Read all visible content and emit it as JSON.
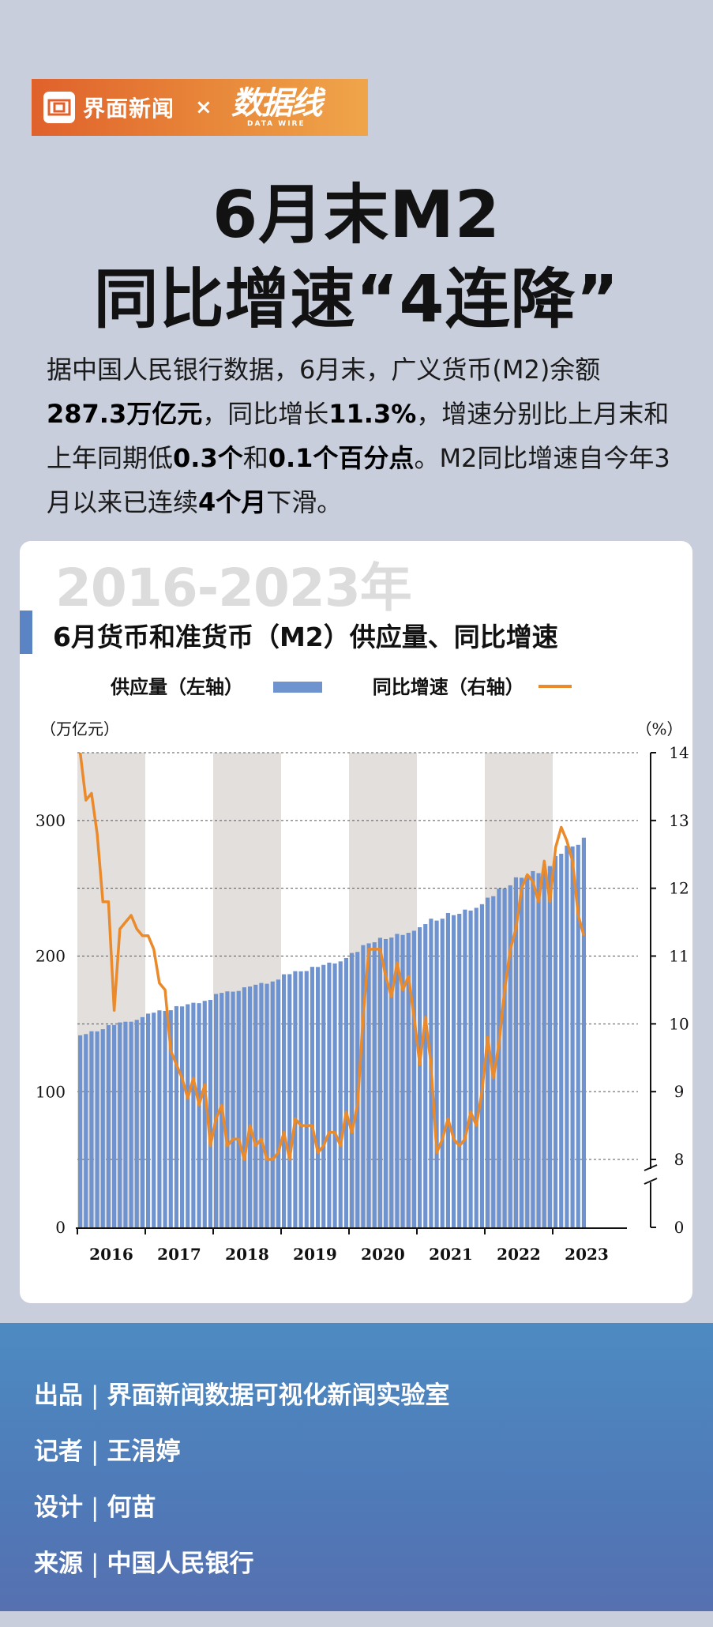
{
  "header": {
    "brand": "界面新闻",
    "times": "×",
    "partner_cn": "数据线",
    "partner_en": "DATA WIRE"
  },
  "title": {
    "line1": "6月末M2",
    "line2": "同比增速“4连降”"
  },
  "intro": {
    "p1": "据中国人民银行数据，6月末，广义货币(M2)余额",
    "b1": "287.3万亿元",
    "p2": "，同比增长",
    "b2": "11.3%",
    "p3": "，增速分别比上月末和上年同期低",
    "b3": "0.3个",
    "p4": "和",
    "b4": "0.1个百分点",
    "p5": "。M2同比增速自今年3月以来已连续",
    "b5": "4个月",
    "p6": "下滑。"
  },
  "colors": {
    "bar": "#6f93cf",
    "line": "#ea8a2a",
    "band": "#e3dfdd",
    "accent": "#e0612b",
    "footer": "#4f7ab8"
  },
  "chart_data": {
    "type": "bar+line",
    "title": "6月货币和准货币（M2）供应量、同比增速",
    "year_range": "2016-2023年",
    "legend": {
      "bars": "供应量（左轴）",
      "line": "同比增速（右轴）"
    },
    "left_axis": {
      "unit": "（万亿元）",
      "ticks": [
        0,
        100,
        200,
        300
      ],
      "range": [
        0,
        350
      ]
    },
    "right_axis": {
      "unit": "（%）",
      "ticks": [
        0,
        8,
        9,
        10,
        11,
        12,
        13,
        14
      ],
      "broken": true,
      "range": [
        7.5,
        14
      ]
    },
    "years": [
      "2016",
      "2017",
      "2018",
      "2019",
      "2020",
      "2021",
      "2022",
      "2023"
    ],
    "start": "2016-01",
    "end": "2023-06",
    "series": [
      {
        "name": "供应量（左轴）",
        "axis": "left",
        "kind": "bar",
        "values": [
          141.6,
          142.5,
          144.6,
          144.5,
          146.1,
          149.1,
          149.2,
          151.1,
          151.6,
          151.6,
          153.0,
          155.0,
          157.6,
          158.3,
          160.0,
          159.6,
          160.1,
          163.1,
          162.9,
          164.5,
          165.6,
          165.3,
          167.0,
          167.7,
          172.1,
          172.9,
          173.99,
          173.8,
          174.3,
          177.0,
          177.6,
          178.9,
          180.2,
          179.6,
          181.3,
          182.7,
          186.6,
          186.7,
          188.9,
          188.8,
          189.0,
          192.1,
          192.0,
          193.5,
          195.2,
          194.6,
          196.1,
          198.6,
          202.3,
          203.1,
          208.1,
          209.4,
          210.2,
          213.5,
          212.6,
          213.7,
          216.4,
          215.6,
          217.2,
          218.7,
          221.3,
          223.6,
          227.6,
          226.2,
          227.6,
          231.8,
          230.2,
          231.2,
          234.3,
          233.6,
          235.6,
          238.3,
          243.1,
          244.2,
          249.8,
          249.9,
          252.2,
          258.1,
          257.8,
          259.5,
          262.7,
          261.2,
          264.7,
          266.4,
          273.8,
          275.5,
          281.5,
          280.9,
          282.0,
          287.3
        ]
      },
      {
        "name": "同比增速（右轴）",
        "axis": "right",
        "kind": "line",
        "values": [
          14.0,
          13.3,
          13.4,
          12.8,
          11.8,
          11.8,
          10.2,
          11.4,
          11.5,
          11.6,
          11.4,
          11.3,
          11.3,
          11.1,
          10.6,
          10.5,
          9.6,
          9.4,
          9.2,
          8.9,
          9.2,
          8.8,
          9.1,
          8.2,
          8.6,
          8.8,
          8.2,
          8.3,
          8.3,
          8.0,
          8.5,
          8.2,
          8.3,
          8.0,
          8.0,
          8.1,
          8.4,
          8.0,
          8.6,
          8.5,
          8.5,
          8.5,
          8.1,
          8.2,
          8.4,
          8.4,
          8.2,
          8.7,
          8.4,
          8.8,
          10.1,
          11.1,
          11.1,
          11.1,
          10.7,
          10.4,
          10.9,
          10.5,
          10.7,
          10.1,
          9.4,
          10.1,
          9.4,
          8.1,
          8.3,
          8.6,
          8.3,
          8.2,
          8.3,
          8.7,
          8.5,
          9.0,
          9.8,
          9.2,
          9.7,
          10.5,
          11.1,
          11.4,
          12.0,
          12.2,
          12.1,
          11.8,
          12.4,
          11.8,
          12.6,
          12.9,
          12.7,
          12.4,
          11.6,
          11.3
        ]
      }
    ]
  },
  "credits": [
    {
      "key": "出品",
      "value": "界面新闻数据可视化新闻实验室"
    },
    {
      "key": "记者",
      "value": "王涓婷"
    },
    {
      "key": "设计",
      "value": "何苗"
    },
    {
      "key": "来源",
      "value": "中国人民银行"
    }
  ],
  "credit_sep": "|"
}
